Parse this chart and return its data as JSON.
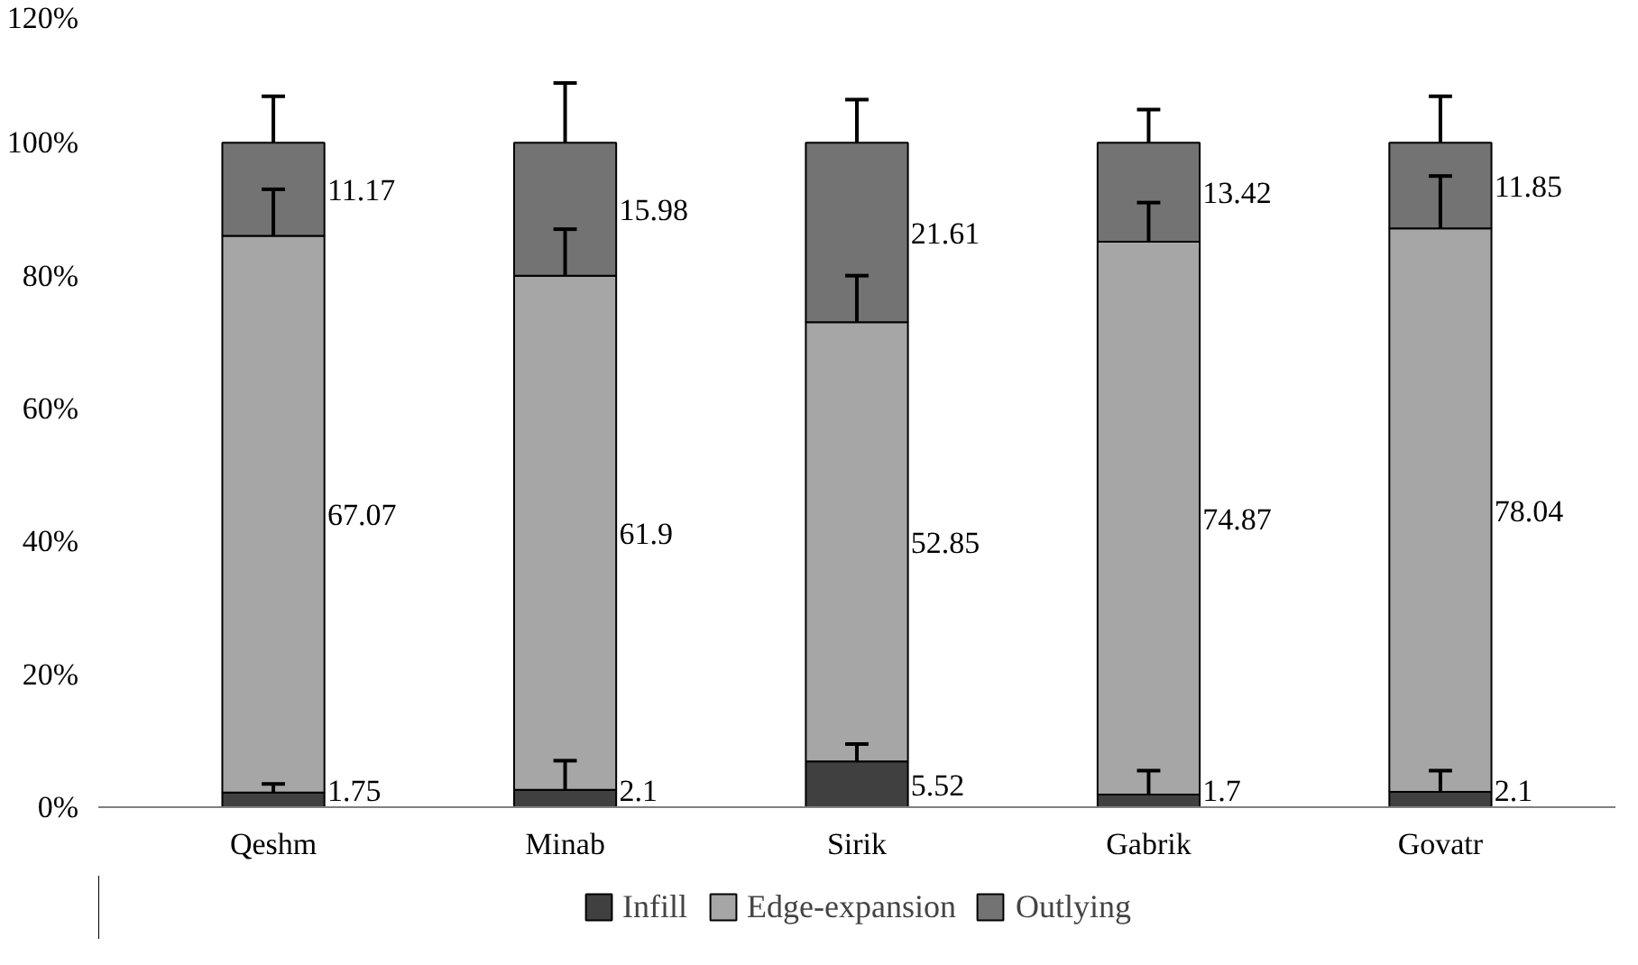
{
  "chart_data": {
    "type": "bar",
    "stacked": true,
    "categories": [
      "Qeshm",
      "Minab",
      "Sirik",
      "Gabrik",
      "Govatr"
    ],
    "ylim": [
      0,
      120
    ],
    "yticks": [
      {
        "value": 0,
        "label": "0%"
      },
      {
        "value": 20,
        "label": "20%"
      },
      {
        "value": 40,
        "label": "40%"
      },
      {
        "value": 60,
        "label": "60%"
      },
      {
        "value": 80,
        "label": "80%"
      },
      {
        "value": 100,
        "label": "100%"
      },
      {
        "value": 120,
        "label": "120%"
      }
    ],
    "grid": false,
    "legend": "bottom",
    "series": [
      {
        "name": "Infill",
        "color": "#404040",
        "values": [
          2.2,
          2.6,
          6.9,
          1.9,
          2.3
        ],
        "errors": [
          [
            2.2,
            3.5
          ],
          [
            2.6,
            7
          ],
          [
            6.9,
            9.5
          ],
          [
            1.9,
            5.5
          ],
          [
            2.3,
            5.5
          ]
        ]
      },
      {
        "name": "Edge-expansion",
        "color": "#a6a6a6",
        "values": [
          83.8,
          77.4,
          66.1,
          83.2,
          84.8
        ],
        "errors": [
          [
            86,
            93
          ],
          [
            80,
            87
          ],
          [
            73,
            80
          ],
          [
            85.1,
            91
          ],
          [
            87.1,
            95
          ]
        ]
      },
      {
        "name": "Outlying",
        "color": "#737373",
        "values": [
          14,
          20,
          27,
          14.9,
          12.9
        ],
        "errors": [
          [
            100,
            107
          ],
          [
            100,
            109
          ],
          [
            100,
            106.5
          ],
          [
            100,
            105
          ],
          [
            100,
            107
          ]
        ]
      }
    ],
    "annotations": [
      "1.75",
      "67.07",
      "11.17",
      "2.1",
      "61.9",
      "15.98",
      "5.52",
      "52.85",
      "21.61",
      "1.7",
      "74.87",
      "13.42",
      "2.1",
      "78.04",
      "11.85"
    ]
  }
}
